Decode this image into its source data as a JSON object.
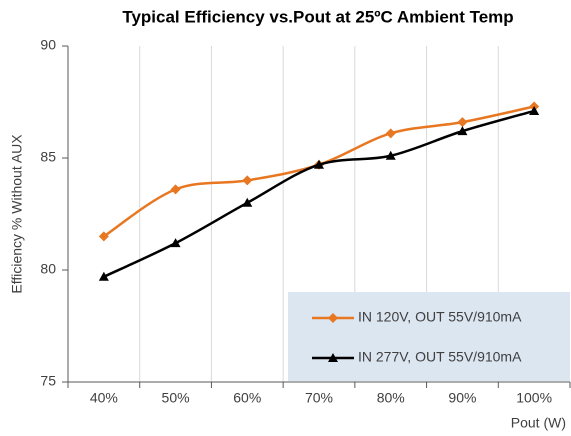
{
  "chart_data": {
    "type": "line",
    "title": "Typical Efficiency vs.Pout at 25ºC Ambient Temp",
    "xlabel": "Pout (W)",
    "ylabel": "Efficiency % Without AUX",
    "categories": [
      "40%",
      "50%",
      "60%",
      "70%",
      "80%",
      "90%",
      "100%"
    ],
    "series": [
      {
        "name": "IN 120V, OUT 55V/910mA",
        "color": "#e87722",
        "marker": "diamond",
        "values": [
          81.5,
          83.6,
          84.0,
          84.7,
          86.1,
          86.6,
          87.3
        ]
      },
      {
        "name": "IN 277V, OUT 55V/910mA",
        "color": "#000000",
        "marker": "triangle",
        "values": [
          79.7,
          81.2,
          83.0,
          84.7,
          85.1,
          86.2,
          87.1
        ]
      }
    ],
    "ylim": [
      75,
      90
    ],
    "yticks": [
      75,
      80,
      85,
      90
    ],
    "grid": true,
    "smooth": true,
    "legend": "lower right"
  }
}
